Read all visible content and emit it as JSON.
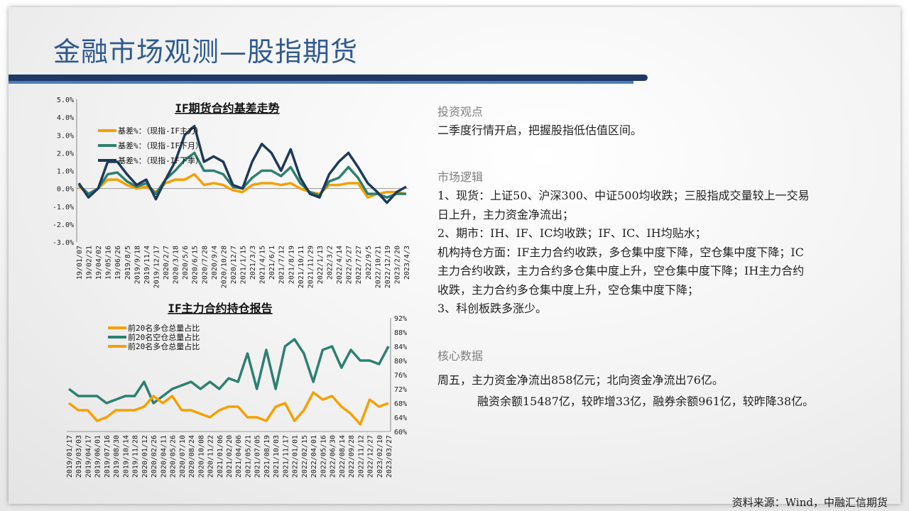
{
  "title": "金融市场观测—股指期货",
  "panel": {
    "view_head": "投资观点",
    "view_text": "二季度行情开启，把握股指低估值区间。",
    "logic_head": "市场逻辑",
    "logic_lines": [
      "1、现货：上证50、沪深300、中证500均收跌；三股指成交量较上一交易",
      "日上升，主力资金净流出；",
      "2、期市：IH、IF、IC均收跌；IF、IC、IH均贴水；",
      "机构持仓方面：IF主力合约收跌，多仓集中度下降，空仓集中度下降；IC",
      "主力合约收跌，主力合约多仓集中度上升，空仓集中度下降；IH主力合约",
      "收跌，主力合约多仓集中度上升，空仓集中度下降；",
      "3、科创板跌多涨少。"
    ],
    "data_head": "核心数据",
    "data_lines": [
      "周五，主力资金净流出858亿元；北向资金净流出76亿。",
      "融资余额15487亿，较昨增33亿，融券余额961亿，较昨降38亿。"
    ]
  },
  "source": "资料来源：Wind，中融汇信期货",
  "chart_data": [
    {
      "type": "line",
      "title": "IF期货合约基差走势",
      "ylim": [
        -3.0,
        5.0
      ],
      "yticks": [
        "5.0%",
        "4.0%",
        "3.0%",
        "2.0%",
        "1.0%",
        "0.0%",
        "-1.0%",
        "-2.0%",
        "-3.0%"
      ],
      "legend": "top-left",
      "grid": false,
      "categories": [
        "19/01/07",
        "19/02/21",
        "19/04/02",
        "19/05/16",
        "19/06/26",
        "2019/8/5",
        "2019/9/18",
        "2019/11/4",
        "2019/12/17",
        "2020/2/7",
        "2020/3/18",
        "2020/5/6",
        "2020/6/15",
        "2020/7/28",
        "2020/9/4",
        "2020/10/28",
        "2020/12/7",
        "2021/1/15",
        "2021/3/3",
        "2021/4/15",
        "2021/6/1",
        "2021/7/12",
        "2021/8/19",
        "2021/10/11",
        "2021/11/29",
        "2022/1/13",
        "2022/3/2",
        "2022/4/14",
        "2022/5/27",
        "2022/7/27",
        "2022/9/5",
        "2022/10/21",
        "2022/12/19",
        "2023/2/20",
        "2023/4/3"
      ],
      "series": [
        {
          "name": "基差%：（现指-IF主力）",
          "color": "#f5a000",
          "values": [
            0.1,
            -0.3,
            0.0,
            0.5,
            0.5,
            0.2,
            0.0,
            0.1,
            -0.2,
            0.3,
            0.5,
            0.5,
            0.8,
            0.2,
            0.3,
            0.2,
            -0.1,
            -0.2,
            0.2,
            0.3,
            0.3,
            0.2,
            0.3,
            0.0,
            -0.2,
            -0.3,
            0.2,
            0.2,
            0.3,
            0.3,
            -0.5,
            -0.3,
            -0.2,
            -0.2,
            -0.3
          ]
        },
        {
          "name": "基差%：（现指-IF下月）",
          "color": "#2e8070",
          "values": [
            0.2,
            -0.3,
            0.0,
            0.8,
            0.9,
            0.4,
            0.1,
            0.3,
            -0.3,
            0.5,
            1.0,
            1.6,
            2.0,
            1.0,
            1.0,
            0.8,
            0.1,
            0.0,
            0.6,
            1.0,
            1.0,
            0.7,
            1.2,
            0.3,
            -0.2,
            -0.4,
            0.4,
            0.6,
            1.2,
            0.6,
            -0.3,
            -0.3,
            -0.5,
            -0.3,
            -0.3
          ]
        },
        {
          "name": "基差%：（现指-IF下季）",
          "color": "#1e3a5a",
          "values": [
            0.3,
            -0.5,
            0.0,
            1.5,
            1.5,
            0.8,
            0.2,
            0.5,
            -0.6,
            0.5,
            1.5,
            3.0,
            3.5,
            1.5,
            1.8,
            1.5,
            0.2,
            0.0,
            1.5,
            2.5,
            2.0,
            1.0,
            2.2,
            0.6,
            -0.3,
            -0.5,
            0.8,
            1.5,
            2.0,
            1.2,
            0.3,
            -0.2,
            -0.8,
            -0.2,
            0.1
          ]
        }
      ]
    },
    {
      "type": "line",
      "title": "IF主力合约持仓报告",
      "ylim": [
        60,
        92
      ],
      "yticks": [
        "92%",
        "88%",
        "84%",
        "80%",
        "76%",
        "72%",
        "68%",
        "64%",
        "60%"
      ],
      "y_axis": "right",
      "legend": "top-left",
      "grid": false,
      "categories": [
        "2019/01/17",
        "2019/03/03",
        "2019/04/17",
        "2019/06/01",
        "2019/07/16",
        "2019/08/30",
        "2019/10/14",
        "2019/11/28",
        "2020/01/12",
        "2020/02/26",
        "2020/04/11",
        "2020/05/26",
        "2020/07/10",
        "2020/08/24",
        "2020/10/08",
        "2020/11/22",
        "2021/01/06",
        "2021/02/20",
        "2021/04/06",
        "2021/05/21",
        "2021/07/05",
        "2021/08/19",
        "2021/10/03",
        "2021/11/17",
        "2022/01/01",
        "2022/02/15",
        "2022/04/01",
        "2022/05/16",
        "2022/06/30",
        "2022/08/14",
        "2022/09/28",
        "2022/11/12",
        "2022/12/27",
        "2023/02/10",
        "2023/03/27"
      ],
      "legend_entries": [
        {
          "name": "前20名多仓总量占比",
          "color": "#f5a000"
        },
        {
          "name": "前20名空仓总量占比",
          "color": "#2e8070"
        },
        {
          "name": "前20名多仓总量占比",
          "color": "#f5a000"
        }
      ],
      "series": [
        {
          "name": "前20名空仓总量占比",
          "color": "#2e8070",
          "values": [
            72,
            70,
            70,
            70,
            68,
            69,
            70,
            70,
            74,
            68,
            70,
            72,
            73,
            74,
            72,
            74,
            72,
            75,
            74,
            82,
            72,
            83,
            72,
            84,
            86,
            82,
            74,
            83,
            84,
            78,
            83,
            80,
            80,
            79,
            84
          ]
        },
        {
          "name": "前20名多仓总量占比",
          "color": "#f5a000",
          "values": [
            68,
            66,
            66,
            63,
            64,
            66,
            66,
            66,
            67,
            70,
            68,
            70,
            66,
            66,
            65,
            64,
            66,
            67,
            67,
            64,
            64,
            63,
            67,
            68,
            63,
            66,
            71,
            69,
            70,
            67,
            65,
            62,
            69,
            67,
            68
          ]
        }
      ]
    }
  ]
}
